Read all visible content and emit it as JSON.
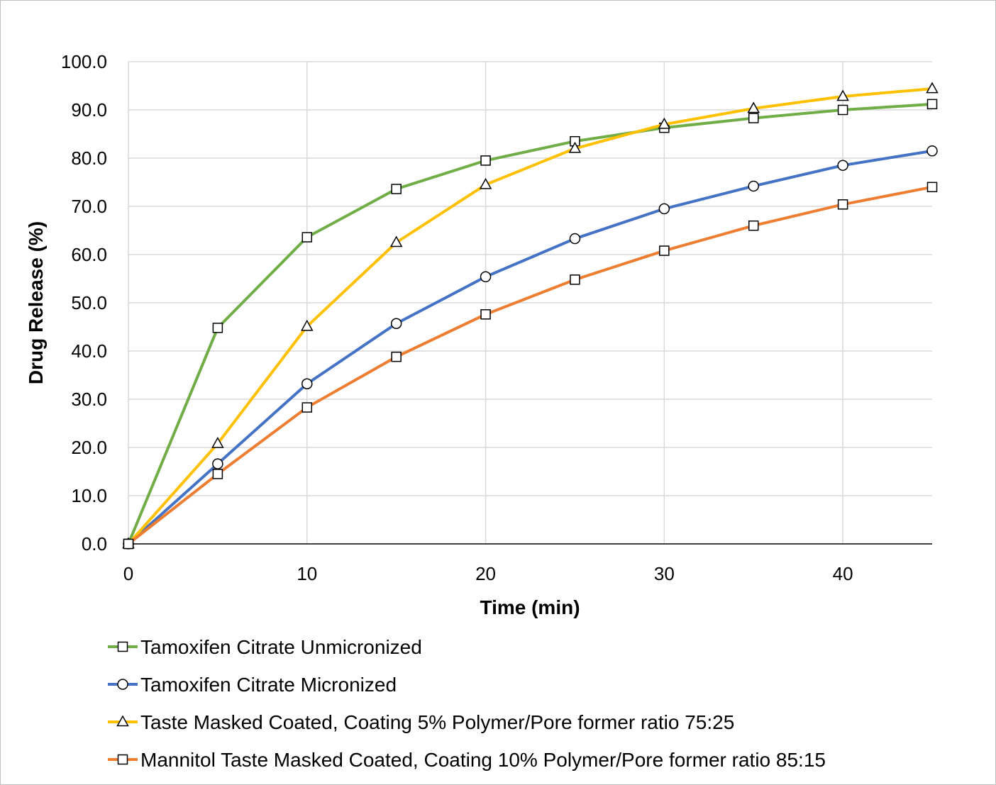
{
  "chart_data": {
    "type": "line",
    "title": "",
    "xlabel": "Time (min)",
    "ylabel": "Drug Release (%)",
    "xlim": [
      0,
      45
    ],
    "ylim": [
      0,
      100
    ],
    "x_ticks": [
      "0",
      "10",
      "20",
      "30",
      "40"
    ],
    "y_ticks": [
      "0.0",
      "10.0",
      "20.0",
      "30.0",
      "40.0",
      "50.0",
      "60.0",
      "70.0",
      "80.0",
      "90.0",
      "100.0"
    ],
    "grid": true,
    "legend_position": "bottom",
    "series": [
      {
        "name": "Tamoxifen Citrate Unmicronized",
        "color": "#70ad47",
        "marker": "square",
        "x": [
          0,
          5,
          10,
          15,
          20,
          25,
          30,
          35,
          40,
          45
        ],
        "y": [
          0,
          44.8,
          63.6,
          73.6,
          79.5,
          83.5,
          86.3,
          88.3,
          90.0,
          91.2
        ]
      },
      {
        "name": "Tamoxifen Citrate Micronized",
        "color": "#4472c4",
        "marker": "circle",
        "x": [
          0,
          5,
          10,
          15,
          20,
          25,
          30,
          35,
          40,
          45
        ],
        "y": [
          0,
          16.6,
          33.2,
          45.7,
          55.4,
          63.3,
          69.5,
          74.2,
          78.5,
          81.5
        ]
      },
      {
        "name": "Taste Masked Coated, Coating 5% Polymer/Pore former ratio 75:25",
        "color": "#ffc000",
        "marker": "triangle",
        "x": [
          0,
          5,
          10,
          15,
          20,
          25,
          30,
          35,
          40,
          45
        ],
        "y": [
          0,
          20.8,
          45.1,
          62.5,
          74.5,
          82.0,
          87.0,
          90.3,
          92.8,
          94.4
        ]
      },
      {
        "name": "Mannitol Taste Masked Coated, Coating 10% Polymer/Pore former ratio 85:15",
        "color": "#ed7d31",
        "marker": "square",
        "x": [
          0,
          5,
          10,
          15,
          20,
          25,
          30,
          35,
          40,
          45
        ],
        "y": [
          0,
          14.5,
          28.3,
          38.8,
          47.6,
          54.8,
          60.8,
          66.0,
          70.4,
          74.0
        ]
      }
    ]
  }
}
